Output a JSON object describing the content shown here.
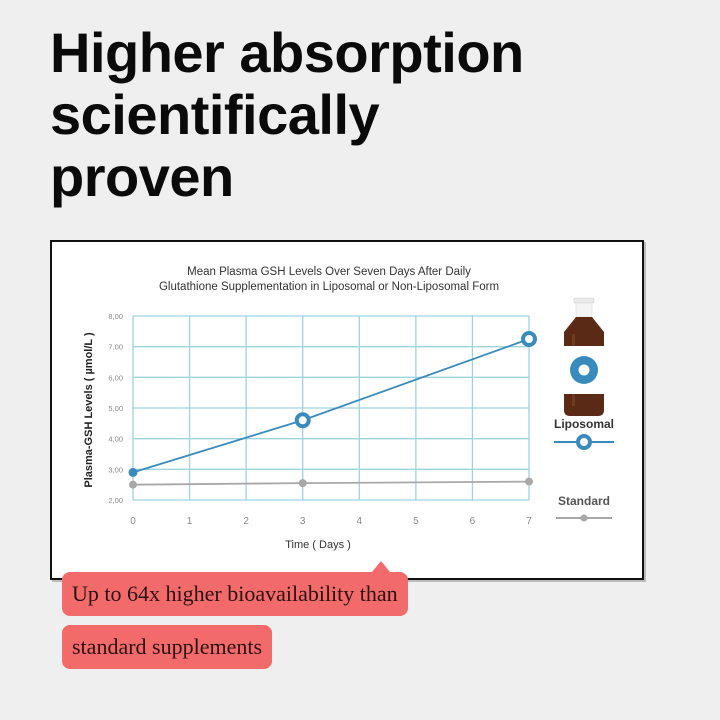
{
  "headline": {
    "lines": [
      "Higher absorption",
      "scientifically",
      "proven"
    ]
  },
  "callout": {
    "line1": "Up to 64x higher bioavailability than",
    "line2": "standard supplements"
  },
  "colors": {
    "liposomal": "#3a8bbd",
    "standard": "#a8a8a8",
    "grid": "#9fd3de",
    "callout_bg": "#f26a6a",
    "bottle_glass": "#5a2a16"
  },
  "product_icon": "supplement-bottle-icon",
  "chart_data": {
    "type": "line",
    "title_lines": [
      "Mean Plasma GSH Levels Over Seven Days After Daily",
      "Glutathione Supplementation in Liposomal or Non-Liposomal Form"
    ],
    "xlabel": "Time ( Days )",
    "ylabel": "Plasma-GSH Levels ( µmol/L )",
    "xlim": [
      0,
      7
    ],
    "ylim": [
      2,
      8
    ],
    "x_ticks": [
      "0",
      "1",
      "2",
      "3",
      "4",
      "5",
      "6",
      "7"
    ],
    "y_ticks": [
      "2,00",
      "3,00",
      "4,00",
      "5,00",
      "6,00",
      "7,00",
      "8,00"
    ],
    "grid": true,
    "legend_position": "right",
    "series": [
      {
        "name": "Liposomal",
        "points": [
          {
            "x": 0,
            "y": 2.9
          },
          {
            "x": 3,
            "y": 4.6
          },
          {
            "x": 7,
            "y": 7.25
          }
        ],
        "color": "#3a8bbd"
      },
      {
        "name": "Standard",
        "points": [
          {
            "x": 0,
            "y": 2.5
          },
          {
            "x": 3,
            "y": 2.55
          },
          {
            "x": 7,
            "y": 2.6
          }
        ],
        "color": "#a8a8a8"
      }
    ]
  }
}
